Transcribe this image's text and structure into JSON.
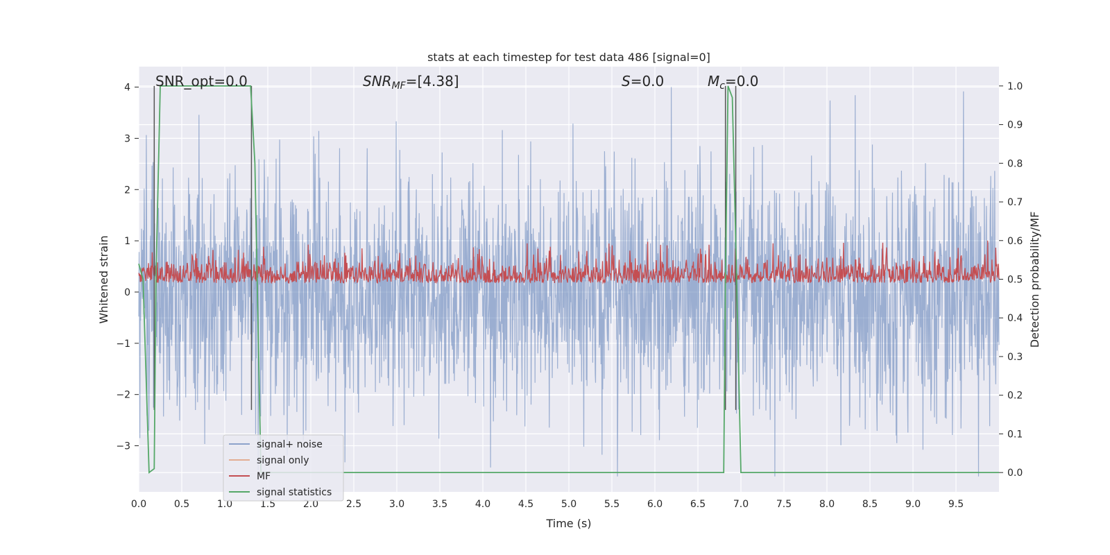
{
  "chart_data": {
    "type": "line",
    "title": "stats at each timestep for test data 486 [signal=0]",
    "xlabel": "Time (s)",
    "ylabel": "Whitened strain",
    "y2label": "Detection probability/MF",
    "xlim": [
      0.0,
      10.0
    ],
    "ylim": [
      -3.9,
      4.4
    ],
    "y2lim": [
      -0.05,
      1.05
    ],
    "xticks": [
      "0.0",
      "0.5",
      "1.0",
      "1.5",
      "2.0",
      "2.5",
      "3.0",
      "3.5",
      "4.0",
      "4.5",
      "5.0",
      "5.5",
      "6.0",
      "6.5",
      "7.0",
      "7.5",
      "8.0",
      "8.5",
      "9.0",
      "9.5"
    ],
    "yticks": [
      "4",
      "3",
      "2",
      "1",
      "0",
      "−1",
      "−2",
      "−3"
    ],
    "y2ticks": [
      "1.0",
      "0.9",
      "0.8",
      "0.7",
      "0.6",
      "0.5",
      "0.4",
      "0.3",
      "0.2",
      "0.1",
      "0.0"
    ],
    "grid": true,
    "legend_position": "lower-left",
    "colors": {
      "noise": "#4c72b0",
      "signal": "#dd8452",
      "mf": "#c44e52",
      "stat": "#55a868",
      "vline": "#555555"
    },
    "annotations": {
      "snr_opt": "SNR_opt=0.0",
      "snr_mf_italic": "SNR",
      "snr_mf_sub": "MF",
      "snr_mf_rest": "=[4.38]",
      "s_italic": "S",
      "s_rest": "=0.0",
      "mc_italic": "M",
      "mc_sub": "c",
      "mc_rest": "=0.0"
    },
    "series": [
      {
        "name": "signal+ noise",
        "description": "whitened noise, roughly ±2 to ±4",
        "amplitude_max": 4.0
      },
      {
        "name": "signal only",
        "values_note": "zero throughout"
      },
      {
        "name": "MF",
        "axis": "right",
        "baseline": 0.5,
        "range": [
          0.47,
          0.6
        ]
      },
      {
        "name": "signal statistics",
        "axis": "right",
        "x": [
          0.0,
          0.05,
          0.12,
          0.18,
          0.2,
          0.25,
          1.3,
          1.35,
          1.42,
          6.8,
          6.82,
          6.85,
          6.9,
          6.95,
          7.0,
          10.0
        ],
        "y": [
          0.54,
          0.5,
          0.0,
          0.01,
          0.5,
          1.0,
          1.0,
          0.8,
          0.0,
          0.0,
          0.5,
          1.0,
          0.97,
          0.5,
          0.0,
          0.0
        ]
      }
    ],
    "vlines": [
      0.18,
      1.31,
      6.82,
      6.94
    ]
  }
}
